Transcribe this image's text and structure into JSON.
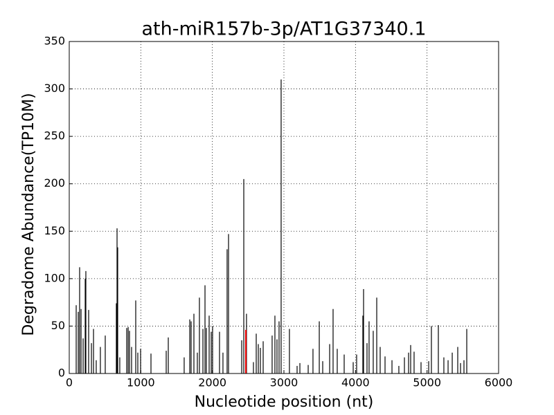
{
  "chart_data": {
    "type": "spike",
    "title": "ath-miR157b-3p/AT1G37340.1",
    "xlabel": "Nucleotide position (nt)",
    "ylabel": "Degradome Abundance(TP10M)",
    "xlim": [
      0,
      6000
    ],
    "xticks": [
      0,
      1000,
      2000,
      3000,
      4000,
      5000,
      6000
    ],
    "ylim": [
      0,
      350
    ],
    "yticks": [
      0,
      50,
      100,
      150,
      200,
      250,
      300,
      350
    ],
    "grid": true,
    "color": "#000000",
    "x": [
      97,
      126,
      145,
      165,
      194,
      223,
      232,
      271,
      310,
      339,
      377,
      435,
      503,
      658,
      668,
      677,
      706,
      803,
      823,
      842,
      871,
      929,
      958,
      997,
      1142,
      1355,
      1384,
      1606,
      1684,
      1703,
      1742,
      1790,
      1819,
      1868,
      1897,
      1916,
      1955,
      1984,
      2003,
      2100,
      2148,
      2206,
      2226,
      2410,
      2439,
      2477,
      2574,
      2613,
      2642,
      2671,
      2710,
      2835,
      2874,
      2903,
      2932,
      2961,
      3077,
      3184,
      3223,
      3339,
      3406,
      3494,
      3542,
      3639,
      3687,
      3745,
      3842,
      3968,
      4016,
      4103,
      4113,
      4161,
      4190,
      4248,
      4297,
      4345,
      4413,
      4510,
      4606,
      4684,
      4742,
      4771,
      4819,
      4916,
      5023,
      5061,
      5158,
      5235,
      5294,
      5352,
      5429,
      5468,
      5516,
      5555
    ],
    "values": [
      72,
      65,
      112,
      68,
      37,
      100,
      108,
      67,
      32,
      47,
      14,
      28,
      40,
      74,
      153,
      133,
      17,
      48,
      49,
      45,
      28,
      77,
      22,
      26,
      21,
      24,
      38,
      17,
      57,
      55,
      63,
      22,
      80,
      47,
      93,
      48,
      61,
      44,
      50,
      44,
      22,
      131,
      147,
      35,
      205,
      63,
      12,
      42,
      31,
      27,
      34,
      40,
      61,
      36,
      55,
      310,
      47,
      8,
      11,
      9,
      26,
      55,
      13,
      31,
      68,
      26,
      20,
      12,
      20,
      61,
      89,
      32,
      55,
      45,
      80,
      28,
      18,
      14,
      8,
      17,
      22,
      30,
      23,
      12,
      13,
      50,
      51,
      17,
      14,
      22,
      28,
      11,
      14,
      47
    ],
    "highlight": {
      "x": 2468,
      "value": 46,
      "color": "#ff0000"
    }
  }
}
